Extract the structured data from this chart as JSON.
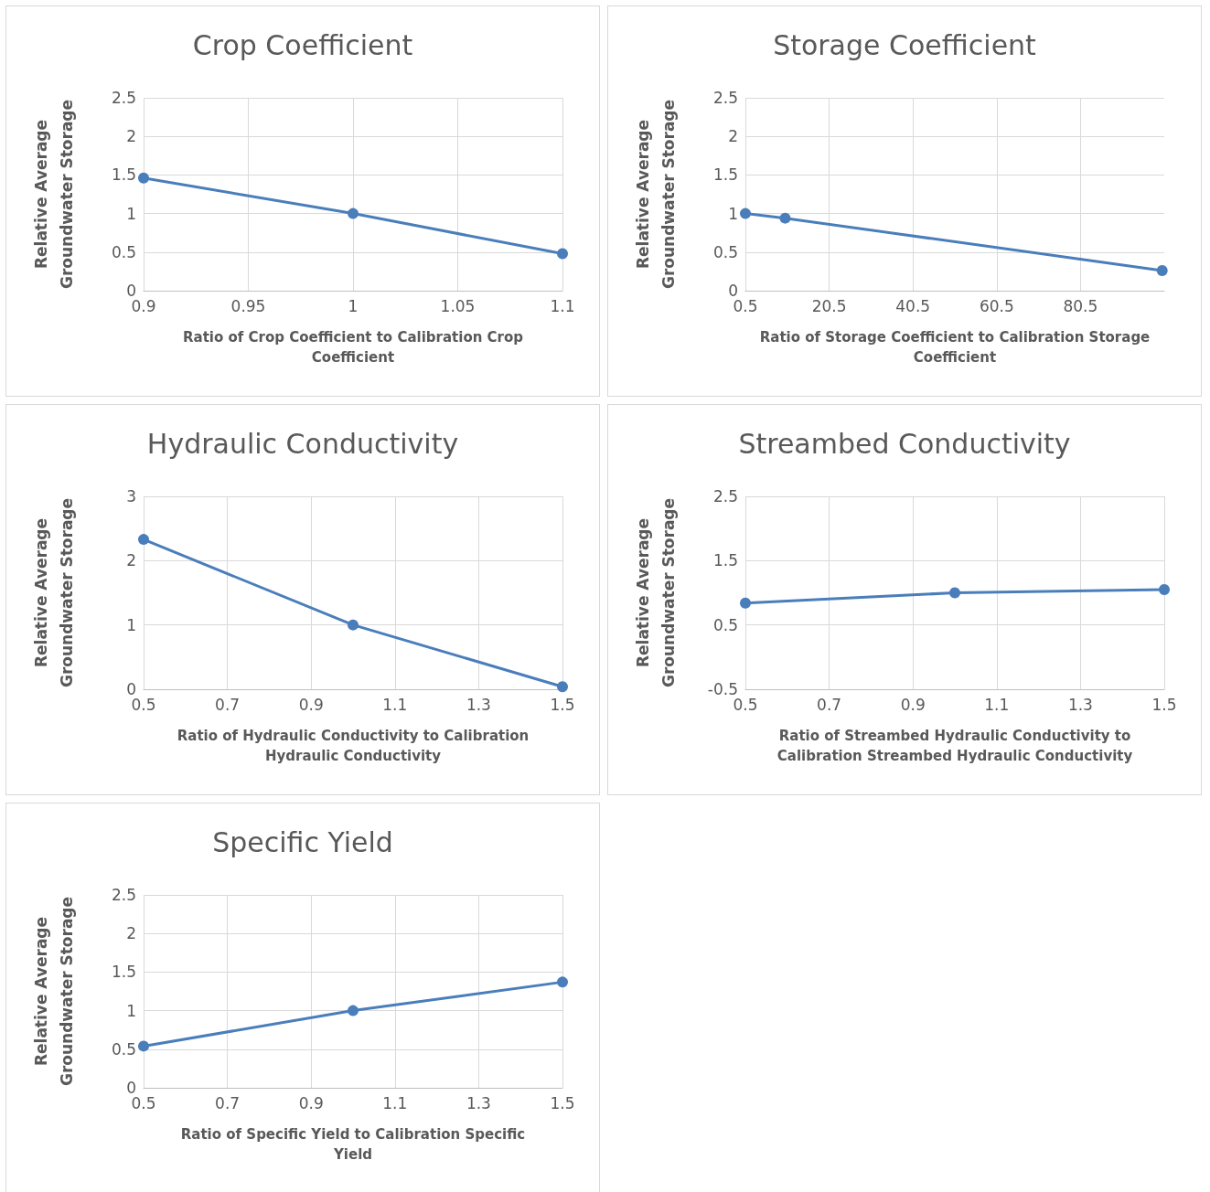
{
  "chart_data": [
    {
      "type": "line",
      "title": "Crop Coefficient",
      "xlabel": "Ratio of Crop Coefficient to Calibration Crop Coefficient",
      "ylabel": "Relative Average Groundwater Storage",
      "x": [
        0.9,
        1,
        1.1
      ],
      "values": [
        1.46,
        1.0,
        0.48
      ],
      "color": "#4a7ebb",
      "xlim": [
        0.9,
        1.1
      ],
      "xticks": [
        0.9,
        0.95,
        1,
        1.05,
        1.1
      ],
      "ylim": [
        0,
        2.5
      ],
      "yticks": [
        0,
        0.5,
        1,
        1.5,
        2,
        2.5
      ],
      "grid": true,
      "marker": "circle"
    },
    {
      "type": "line",
      "title": "Storage Coefficient",
      "xlabel": "Ratio of Storage Coefficient to Calibration Storage Coefficient",
      "ylabel": "Relative Average Groundwater Storage",
      "x": [
        0.5,
        10,
        100
      ],
      "values": [
        1.0,
        0.94,
        0.26
      ],
      "color": "#4a7ebb",
      "xlim": [
        0.5,
        100.5
      ],
      "xticks": [
        0.5,
        20.5,
        40.5,
        60.5,
        80.5
      ],
      "ylim": [
        0,
        2.5
      ],
      "yticks": [
        0,
        0.5,
        1,
        1.5,
        2,
        2.5
      ],
      "grid": true,
      "marker": "circle"
    },
    {
      "type": "line",
      "title": "Hydraulic Conductivity",
      "xlabel": "Ratio of Hydraulic Conductivity to Calibration Hydraulic Conductivity",
      "ylabel": "Relative Average Groundwater Storage",
      "x": [
        0.5,
        1,
        1.5
      ],
      "values": [
        2.33,
        1.0,
        0.04
      ],
      "color": "#4a7ebb",
      "xlim": [
        0.5,
        1.5
      ],
      "xticks": [
        0.5,
        0.7,
        0.9,
        1.1,
        1.3,
        1.5
      ],
      "ylim": [
        0,
        3
      ],
      "yticks": [
        0,
        1,
        2,
        3
      ],
      "grid": true,
      "marker": "circle"
    },
    {
      "type": "line",
      "title": "Streambed Conductivity",
      "xlabel": "Ratio of Streambed Hydraulic Conductivity to Calibration Streambed Hydraulic Conductivity",
      "ylabel": "Relative Average Groundwater Storage",
      "x": [
        0.5,
        1,
        1.5
      ],
      "values": [
        0.84,
        1.0,
        1.05
      ],
      "color": "#4a7ebb",
      "xlim": [
        0.5,
        1.5
      ],
      "xticks": [
        0.5,
        0.7,
        0.9,
        1.1,
        1.3,
        1.5
      ],
      "ylim": [
        -0.5,
        2.5
      ],
      "yticks": [
        -0.5,
        0.5,
        1.5,
        2.5
      ],
      "grid": true,
      "marker": "circle"
    },
    {
      "type": "line",
      "title": "Specific Yield",
      "xlabel": "Ratio of Specific Yield to Calibration Specific Yield",
      "ylabel": "Relative Average Groundwater Storage",
      "x": [
        0.5,
        1,
        1.5
      ],
      "values": [
        0.54,
        1.0,
        1.37
      ],
      "color": "#4a7ebb",
      "xlim": [
        0.5,
        1.5
      ],
      "xticks": [
        0.5,
        0.7,
        0.9,
        1.1,
        1.3,
        1.5
      ],
      "ylim": [
        0,
        2.5
      ],
      "yticks": [
        0,
        0.5,
        1,
        1.5,
        2,
        2.5
      ],
      "grid": true,
      "marker": "circle"
    }
  ]
}
